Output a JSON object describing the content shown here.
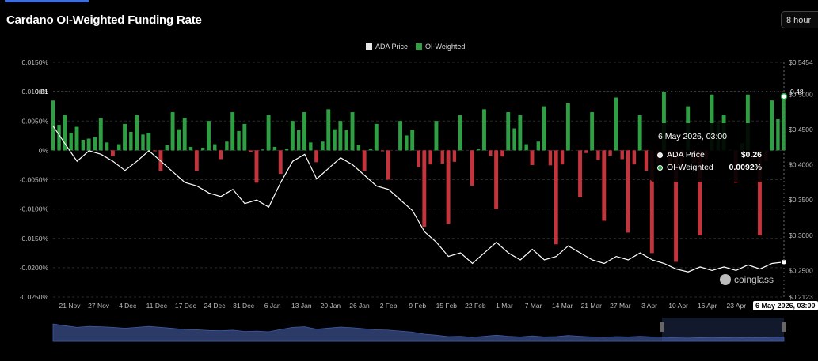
{
  "title": "Cardano OI-Weighted Funding Rate",
  "interval": {
    "label": "8 hour"
  },
  "legend": [
    {
      "label": "ADA Price",
      "color": "#e6e6e6"
    },
    {
      "label": "OI-Weighted",
      "color": "#2ea043"
    }
  ],
  "tooltip": {
    "date": "6 May 2026, 03:00",
    "rows": [
      {
        "label": "ADA Price",
        "value": "$0.26"
      },
      {
        "label": "OI-Weighted",
        "value": "0.0092%"
      }
    ]
  },
  "crosshair": {
    "left_label": "0.01",
    "right_label": "0.48",
    "x_label": "6 May 2026, 03:00"
  },
  "watermark": "coinglass",
  "colors": {
    "positive": "#2ea043",
    "negative": "#c3343c",
    "price": "#ffffff",
    "grid": "#2a2a2a",
    "navigator": "#2b3a66"
  },
  "chart_data": {
    "type": "area",
    "title": "Cardano OI-Weighted Funding Rate",
    "x_ticks": [
      "21 Nov",
      "27 Nov",
      "4 Dec",
      "11 Dec",
      "17 Dec",
      "24 Dec",
      "31 Dec",
      "6 Jan",
      "13 Jan",
      "20 Jan",
      "26 Jan",
      "2 Feb",
      "9 Feb",
      "15 Feb",
      "22 Feb",
      "1 Mar",
      "7 Mar",
      "14 Mar",
      "21 Mar",
      "27 Mar",
      "3 Apr",
      "10 Apr",
      "16 Apr",
      "23 Apr",
      "3"
    ],
    "y_left_ticks": [
      "0.0150%",
      "0.0100%",
      "0.0050%",
      "0%",
      "-0.0050%",
      "-0.0100%",
      "-0.0150%",
      "-0.0200%",
      "-0.0250%"
    ],
    "y_right_ticks": [
      "$0.5454",
      "$0.5000",
      "$0.4500",
      "$0.4000",
      "$0.3500",
      "$0.3000",
      "$0.2500",
      "$0.2123"
    ],
    "y_left_range": [
      -0.025,
      0.015
    ],
    "y_right_range": [
      0.2123,
      0.5454
    ],
    "series": [
      {
        "name": "ADA Price",
        "axis": "right",
        "unit": "USD",
        "points": [
          [
            0,
            0.455
          ],
          [
            2,
            0.43
          ],
          [
            4,
            0.405
          ],
          [
            6,
            0.42
          ],
          [
            8,
            0.415
          ],
          [
            10,
            0.405
          ],
          [
            12,
            0.392
          ],
          [
            14,
            0.405
          ],
          [
            16,
            0.42
          ],
          [
            18,
            0.405
          ],
          [
            20,
            0.39
          ],
          [
            22,
            0.375
          ],
          [
            24,
            0.37
          ],
          [
            26,
            0.36
          ],
          [
            28,
            0.355
          ],
          [
            30,
            0.365
          ],
          [
            32,
            0.345
          ],
          [
            34,
            0.35
          ],
          [
            36,
            0.34
          ],
          [
            38,
            0.375
          ],
          [
            40,
            0.405
          ],
          [
            42,
            0.415
          ],
          [
            44,
            0.38
          ],
          [
            46,
            0.395
          ],
          [
            48,
            0.41
          ],
          [
            50,
            0.4
          ],
          [
            52,
            0.385
          ],
          [
            54,
            0.37
          ],
          [
            56,
            0.365
          ],
          [
            58,
            0.35
          ],
          [
            60,
            0.335
          ],
          [
            62,
            0.305
          ],
          [
            64,
            0.29
          ],
          [
            66,
            0.27
          ],
          [
            68,
            0.275
          ],
          [
            70,
            0.26
          ],
          [
            72,
            0.275
          ],
          [
            74,
            0.29
          ],
          [
            76,
            0.275
          ],
          [
            78,
            0.265
          ],
          [
            80,
            0.28
          ],
          [
            82,
            0.265
          ],
          [
            84,
            0.27
          ],
          [
            86,
            0.285
          ],
          [
            88,
            0.275
          ],
          [
            90,
            0.265
          ],
          [
            92,
            0.26
          ],
          [
            94,
            0.27
          ],
          [
            96,
            0.265
          ],
          [
            98,
            0.275
          ],
          [
            100,
            0.265
          ],
          [
            102,
            0.26
          ],
          [
            104,
            0.252
          ],
          [
            106,
            0.248
          ],
          [
            108,
            0.255
          ],
          [
            110,
            0.25
          ],
          [
            112,
            0.255
          ],
          [
            114,
            0.25
          ],
          [
            116,
            0.258
          ],
          [
            118,
            0.252
          ],
          [
            120,
            0.26
          ],
          [
            122,
            0.262
          ]
        ]
      },
      {
        "name": "OI-Weighted",
        "axis": "left",
        "unit": "%",
        "points": [
          [
            0,
            0.0085
          ],
          [
            2,
            0.006
          ],
          [
            4,
            0.004
          ],
          [
            6,
            0.002
          ],
          [
            8,
            0.0055
          ],
          [
            10,
            -0.001
          ],
          [
            12,
            0.0045
          ],
          [
            14,
            0.006
          ],
          [
            16,
            0.003
          ],
          [
            18,
            -0.0035
          ],
          [
            20,
            0.0065
          ],
          [
            22,
            0.0055
          ],
          [
            24,
            -0.0035
          ],
          [
            26,
            0.005
          ],
          [
            28,
            -0.0015
          ],
          [
            30,
            0.0065
          ],
          [
            32,
            0.0045
          ],
          [
            34,
            -0.0055
          ],
          [
            36,
            0.006
          ],
          [
            38,
            -0.004
          ],
          [
            40,
            0.005
          ],
          [
            42,
            0.0065
          ],
          [
            44,
            -0.002
          ],
          [
            46,
            0.007
          ],
          [
            48,
            0.005
          ],
          [
            50,
            0.0065
          ],
          [
            52,
            -0.0035
          ],
          [
            54,
            0.0045
          ],
          [
            56,
            -0.005
          ],
          [
            58,
            0.005
          ],
          [
            60,
            0.0035
          ],
          [
            62,
            -0.013
          ],
          [
            64,
            0.005
          ],
          [
            66,
            -0.0125
          ],
          [
            68,
            0.006
          ],
          [
            70,
            -0.006
          ],
          [
            72,
            0.007
          ],
          [
            74,
            -0.01
          ],
          [
            76,
            0.0065
          ],
          [
            78,
            0.006
          ],
          [
            80,
            -0.0025
          ],
          [
            82,
            0.0075
          ],
          [
            84,
            -0.016
          ],
          [
            86,
            0.008
          ],
          [
            88,
            -0.008
          ],
          [
            90,
            0.0065
          ],
          [
            92,
            -0.012
          ],
          [
            94,
            0.009
          ],
          [
            96,
            -0.014
          ],
          [
            98,
            0.006
          ],
          [
            100,
            -0.0175
          ],
          [
            102,
            0.01
          ],
          [
            104,
            -0.019
          ],
          [
            106,
            0.0075
          ],
          [
            108,
            -0.0145
          ],
          [
            110,
            0.0095
          ],
          [
            112,
            0.006
          ],
          [
            114,
            -0.0055
          ],
          [
            116,
            0.0095
          ],
          [
            118,
            -0.0145
          ],
          [
            120,
            0.0085
          ],
          [
            122,
            0.0092
          ]
        ]
      }
    ],
    "grid": true,
    "legend_position": "top-center"
  }
}
